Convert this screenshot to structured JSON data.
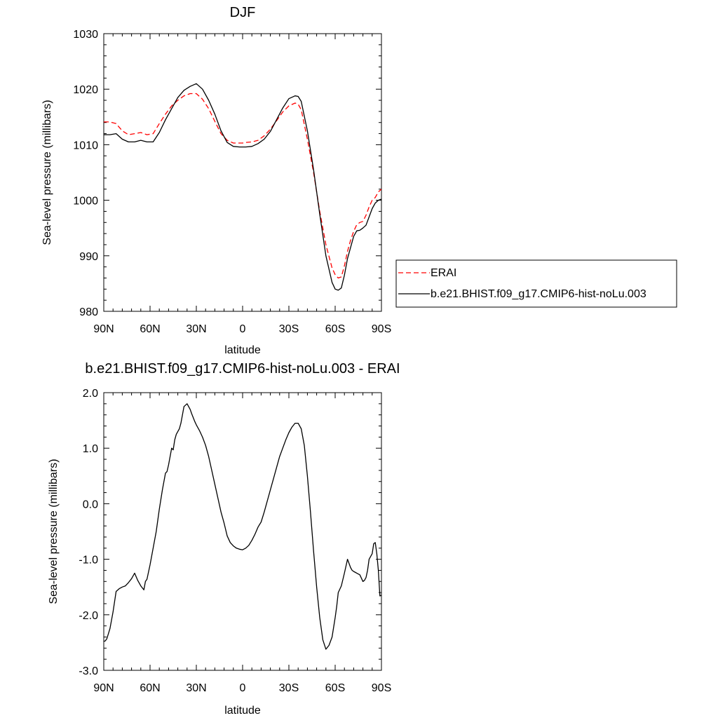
{
  "chart_data": [
    {
      "type": "line",
      "title": "DJF",
      "xlabel": "latitude",
      "ylabel": "Sea-level pressure (millibars)",
      "xlim": [
        90,
        -90
      ],
      "ylim": [
        980,
        1030
      ],
      "x_ticks": [
        90,
        60,
        30,
        0,
        -30,
        -60,
        -90
      ],
      "x_tick_labels": [
        "90N",
        "60N",
        "30N",
        "0",
        "30S",
        "60S",
        "90S"
      ],
      "y_ticks": [
        980,
        990,
        1000,
        1010,
        1020,
        1030
      ],
      "y_tick_labels": [
        "980",
        "990",
        "1000",
        "1010",
        "1020",
        "1030"
      ],
      "legend": {
        "position": "right",
        "entries": [
          "ERAI",
          "b.e21.BHIST.f09_g17.CMIP6-hist-noLu.003"
        ]
      },
      "series": [
        {
          "name": "ERAI",
          "color": "#ff0000",
          "dash": "dashed",
          "x": [
            90,
            86,
            82,
            78,
            74,
            70,
            66,
            62,
            58,
            54,
            50,
            46,
            42,
            38,
            34,
            30,
            26,
            22,
            18,
            14,
            10,
            6,
            2,
            0,
            -2,
            -6,
            -10,
            -14,
            -18,
            -22,
            -26,
            -30,
            -34,
            -36,
            -38,
            -42,
            -46,
            -50,
            -54,
            -58,
            -60,
            -62,
            -64,
            -66,
            -68,
            -70,
            -72,
            -74,
            -76,
            -78,
            -80,
            -82,
            -84,
            -86,
            -88,
            -90
          ],
          "values": [
            1014.1,
            1014.1,
            1013.8,
            1012.5,
            1011.8,
            1012.0,
            1012.2,
            1011.8,
            1012.0,
            1013.8,
            1015.5,
            1017.0,
            1018.0,
            1018.8,
            1019.2,
            1019.2,
            1018.2,
            1016.5,
            1014.2,
            1012.0,
            1010.8,
            1010.3,
            1010.3,
            1010.3,
            1010.4,
            1010.5,
            1010.8,
            1011.6,
            1012.8,
            1014.3,
            1015.9,
            1017.0,
            1017.5,
            1017.3,
            1016.3,
            1011.0,
            1005.0,
            998.0,
            992.0,
            987.8,
            986.6,
            986.0,
            986.2,
            988.2,
            990.8,
            992.8,
            994.4,
            995.6,
            996.0,
            996.2,
            997.3,
            998.8,
            1000.0,
            1000.5,
            1001.5,
            1002.0
          ]
        },
        {
          "name": "b.e21.BHIST.f09_g17.CMIP6-hist-noLu.003",
          "color": "#000000",
          "dash": "solid",
          "x": [
            90,
            86,
            82,
            78,
            74,
            70,
            66,
            62,
            58,
            54,
            50,
            46,
            42,
            38,
            34,
            30,
            26,
            22,
            18,
            14,
            10,
            6,
            2,
            0,
            -2,
            -6,
            -10,
            -14,
            -18,
            -22,
            -26,
            -30,
            -34,
            -36,
            -38,
            -42,
            -46,
            -50,
            -54,
            -58,
            -60,
            -62,
            -64,
            -66,
            -68,
            -70,
            -72,
            -74,
            -76,
            -78,
            -80,
            -82,
            -84,
            -86,
            -88,
            -90
          ],
          "values": [
            1011.8,
            1011.8,
            1012.0,
            1011.0,
            1010.5,
            1010.5,
            1010.8,
            1010.5,
            1010.5,
            1012.2,
            1014.5,
            1016.5,
            1018.5,
            1019.8,
            1020.5,
            1021.0,
            1020.0,
            1018.0,
            1015.5,
            1012.5,
            1010.4,
            1009.7,
            1009.6,
            1009.6,
            1009.6,
            1009.7,
            1010.2,
            1011.0,
            1012.4,
            1014.5,
            1016.6,
            1018.3,
            1018.8,
            1018.7,
            1017.8,
            1012.5,
            1005.5,
            997.5,
            990.0,
            985.2,
            984.0,
            983.8,
            984.2,
            986.5,
            989.5,
            991.5,
            993.5,
            994.5,
            994.6,
            995.0,
            995.5,
            997.0,
            998.5,
            999.5,
            1000.0,
            1000.2
          ]
        }
      ]
    },
    {
      "type": "line",
      "title": "b.e21.BHIST.f09_g17.CMIP6-hist-noLu.003 - ERAI",
      "xlabel": "latitude",
      "ylabel": "Sea-level pressure (millibars)",
      "xlim": [
        90,
        -90
      ],
      "ylim": [
        -3.0,
        2.0
      ],
      "x_ticks": [
        90,
        60,
        30,
        0,
        -30,
        -60,
        -90
      ],
      "x_tick_labels": [
        "90N",
        "60N",
        "30N",
        "0",
        "30S",
        "60S",
        "90S"
      ],
      "y_ticks": [
        -3.0,
        -2.0,
        -1.0,
        0.0,
        1.0,
        2.0
      ],
      "y_tick_labels": [
        "-3.0",
        "-2.0",
        "-1.0",
        "0.0",
        "1.0",
        "2.0"
      ],
      "series": [
        {
          "color": "#000000",
          "dash": "solid",
          "x": [
            90,
            89,
            88,
            86,
            84,
            82,
            80,
            78,
            76,
            74,
            72,
            70,
            68,
            66,
            64,
            63,
            62,
            60,
            58,
            56,
            54,
            52,
            50,
            49,
            48,
            47,
            46,
            45,
            44,
            43,
            42,
            41,
            40,
            38,
            36,
            34,
            33,
            32,
            31,
            30,
            28,
            26,
            24,
            22,
            20,
            18,
            16,
            14,
            12,
            10,
            8,
            6,
            4,
            2,
            0,
            -2,
            -4,
            -6,
            -8,
            -10,
            -12,
            -14,
            -16,
            -18,
            -20,
            -22,
            -24,
            -26,
            -28,
            -30,
            -32,
            -34,
            -36,
            -38,
            -40,
            -42,
            -44,
            -46,
            -48,
            -50,
            -52,
            -54,
            -56,
            -58,
            -60,
            -61,
            -62,
            -64,
            -66,
            -68,
            -70,
            -71,
            -72,
            -74,
            -76,
            -78,
            -79,
            -80,
            -81,
            -82,
            -84,
            -85,
            -86,
            -87,
            -88,
            -89,
            -90
          ],
          "values": [
            -2.48,
            -2.47,
            -2.43,
            -2.25,
            -1.95,
            -1.58,
            -1.53,
            -1.5,
            -1.48,
            -1.42,
            -1.35,
            -1.25,
            -1.38,
            -1.48,
            -1.55,
            -1.4,
            -1.36,
            -1.1,
            -0.8,
            -0.5,
            -0.1,
            0.25,
            0.55,
            0.58,
            0.7,
            0.85,
            1.0,
            0.97,
            1.15,
            1.25,
            1.3,
            1.35,
            1.45,
            1.75,
            1.8,
            1.7,
            1.62,
            1.55,
            1.48,
            1.42,
            1.32,
            1.2,
            1.05,
            0.85,
            0.6,
            0.35,
            0.1,
            -0.15,
            -0.35,
            -0.58,
            -0.7,
            -0.76,
            -0.8,
            -0.82,
            -0.83,
            -0.8,
            -0.75,
            -0.66,
            -0.55,
            -0.42,
            -0.33,
            -0.15,
            0.05,
            0.25,
            0.45,
            0.65,
            0.85,
            1.0,
            1.15,
            1.28,
            1.38,
            1.45,
            1.45,
            1.35,
            1.05,
            0.5,
            -0.15,
            -0.85,
            -1.5,
            -2.05,
            -2.45,
            -2.62,
            -2.55,
            -2.4,
            -2.05,
            -1.85,
            -1.6,
            -1.48,
            -1.25,
            -1.0,
            -1.15,
            -1.2,
            -1.22,
            -1.25,
            -1.28,
            -1.4,
            -1.38,
            -1.33,
            -1.2,
            -1.0,
            -0.9,
            -0.72,
            -0.7,
            -0.9,
            -1.2,
            -1.66,
            -1.65
          ]
        }
      ]
    }
  ]
}
